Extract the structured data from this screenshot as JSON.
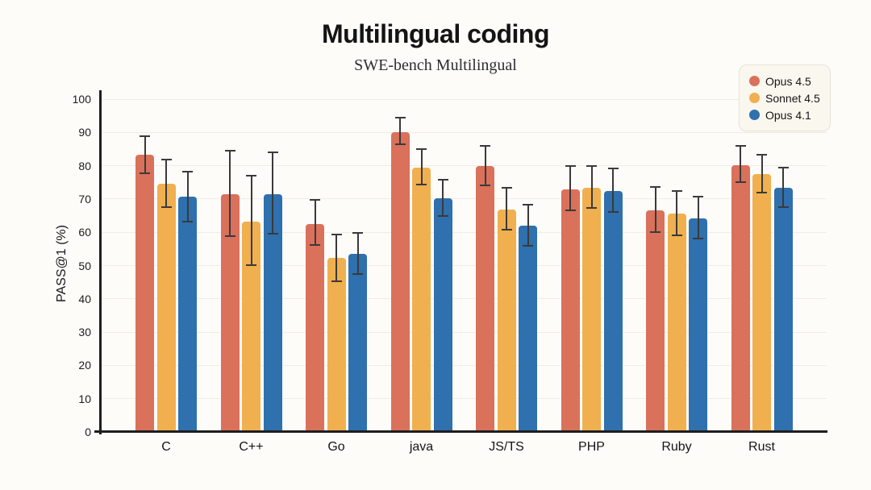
{
  "header": {
    "title": "Multilingual coding",
    "subtitle": "SWE-bench Multilingual"
  },
  "chart_data": {
    "type": "bar",
    "title": "Multilingual coding",
    "subtitle": "SWE-bench Multilingual",
    "xlabel": "",
    "ylabel": "PASS@1 (%)",
    "ylim": [
      0,
      100
    ],
    "yticks": [
      0,
      10,
      20,
      30,
      40,
      50,
      60,
      70,
      80,
      90,
      100
    ],
    "grid": true,
    "legend_position": "top-right",
    "categories": [
      "C",
      "C++",
      "Go",
      "java",
      "JS/TS",
      "PHP",
      "Ruby",
      "Rust"
    ],
    "series": [
      {
        "name": "Opus 4.5",
        "color": "#D9715B",
        "values": [
          83.3,
          71.4,
          62.5,
          90.0,
          79.8,
          72.9,
          66.6,
          80.2
        ],
        "error_low": [
          77.8,
          58.9,
          56.2,
          86.5,
          74.2,
          66.6,
          60.1,
          75.0
        ],
        "error_high": [
          88.8,
          84.4,
          69.8,
          94.4,
          86.0,
          79.8,
          73.5,
          86.0
        ]
      },
      {
        "name": "Sonnet 4.5",
        "color": "#F0B04F",
        "values": [
          74.5,
          63.3,
          52.4,
          79.5,
          66.9,
          73.4,
          65.6,
          77.5
        ],
        "error_low": [
          67.5,
          50.1,
          45.3,
          74.4,
          60.8,
          67.4,
          59.2,
          72.0
        ],
        "error_high": [
          81.9,
          76.9,
          59.4,
          85.0,
          73.4,
          79.9,
          72.5,
          83.3
        ]
      },
      {
        "name": "Opus 4.1",
        "color": "#2F70AE",
        "values": [
          70.6,
          71.4,
          53.4,
          70.2,
          62.1,
          72.4,
          64.2,
          73.3
        ],
        "error_low": [
          63.3,
          59.6,
          47.4,
          64.8,
          55.9,
          66.2,
          58.2,
          67.5
        ],
        "error_high": [
          78.2,
          83.9,
          59.7,
          75.9,
          68.4,
          79.2,
          70.8,
          79.5
        ]
      }
    ],
    "style": {
      "error_bar_color": "#3a3a3a",
      "axis_color": "#1e1e1e",
      "grid_color": "#F0EDE6",
      "background": "#FDFCF9",
      "legend_background": "#FAF7EE"
    }
  }
}
